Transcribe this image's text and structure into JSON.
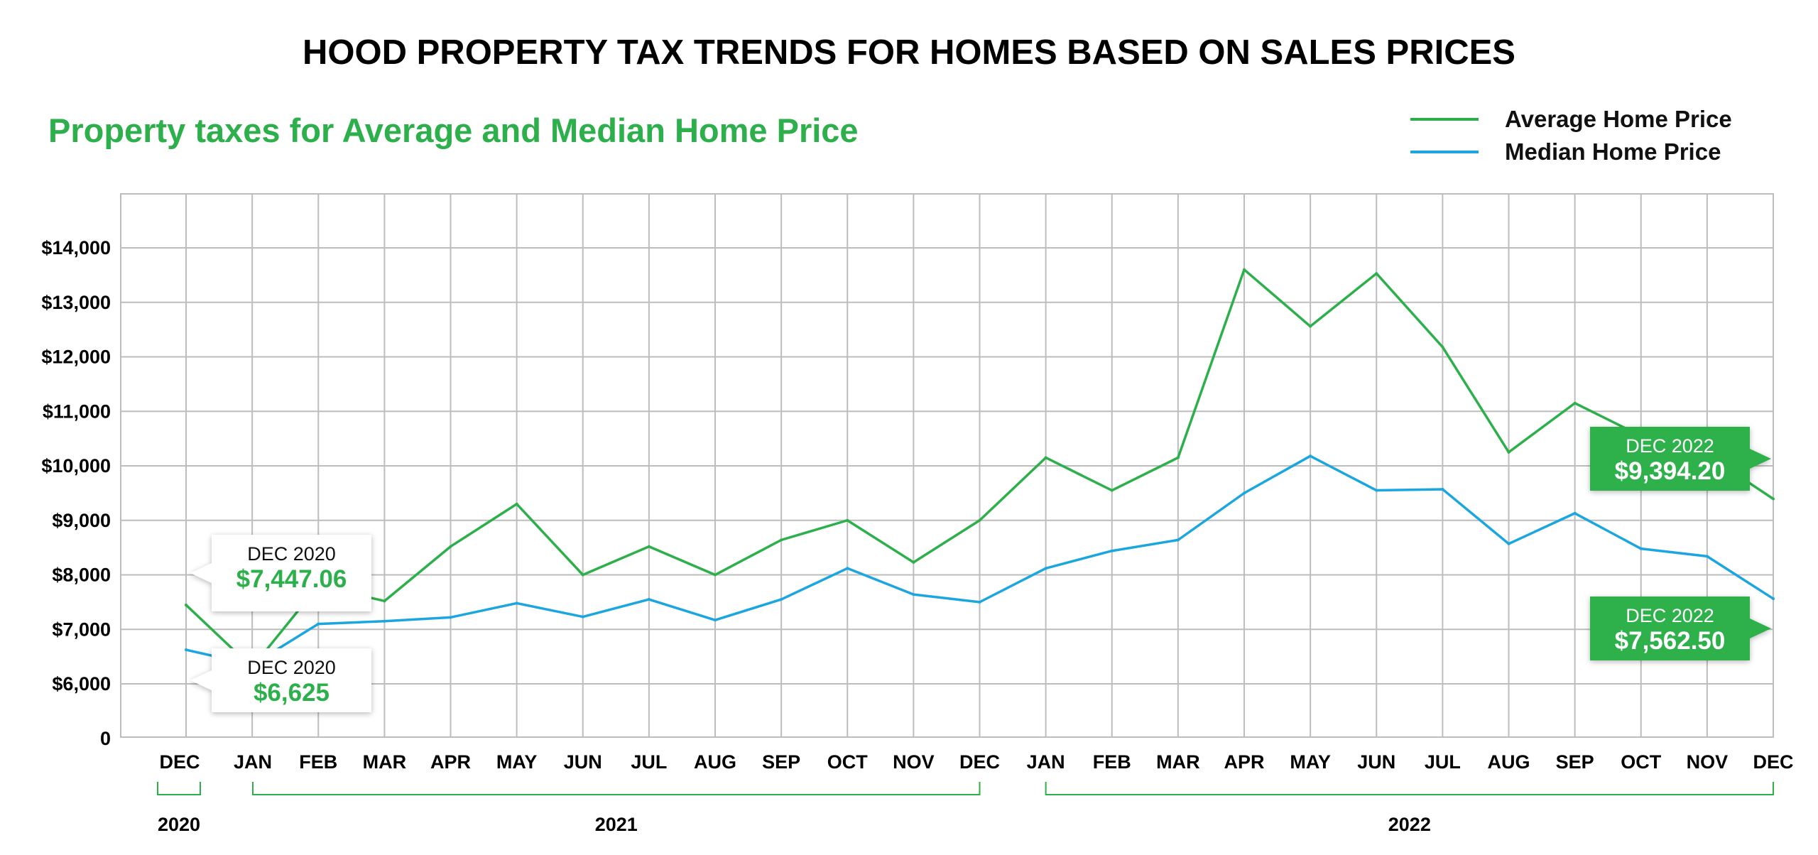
{
  "chart_data": {
    "type": "line",
    "title": "HOOD PROPERTY TAX TRENDS FOR HOMES BASED ON SALES PRICES",
    "subtitle": "Property taxes for Average and Median Home Price",
    "x": [
      "DEC",
      "JAN",
      "FEB",
      "MAR",
      "APR",
      "MAY",
      "JUN",
      "JUL",
      "AUG",
      "SEP",
      "OCT",
      "NOV",
      "DEC",
      "JAN",
      "FEB",
      "MAR",
      "APR",
      "MAY",
      "JUN",
      "JUL",
      "AUG",
      "SEP",
      "OCT",
      "NOV",
      "DEC"
    ],
    "year_groups": [
      {
        "label": "2020",
        "start": 0,
        "end": 0
      },
      {
        "label": "2021",
        "start": 1,
        "end": 12
      },
      {
        "label": "2022",
        "start": 13,
        "end": 24
      }
    ],
    "yticks": [
      {
        "value": 0,
        "label": "0"
      },
      {
        "value": 6000,
        "label": "$6,000"
      },
      {
        "value": 7000,
        "label": "$7,000"
      },
      {
        "value": 8000,
        "label": "$8,000"
      },
      {
        "value": 9000,
        "label": "$9,000"
      },
      {
        "value": 10000,
        "label": "$10,000"
      },
      {
        "value": 11000,
        "label": "$11,000"
      },
      {
        "value": 12000,
        "label": "$12,000"
      },
      {
        "value": 13000,
        "label": "$13,000"
      },
      {
        "value": 14000,
        "label": "$14,000"
      }
    ],
    "grid": true,
    "legend_position": "top-right",
    "series": [
      {
        "name": "Average Home Price",
        "color": "#2db04b",
        "values": [
          7447.06,
          6300,
          7800,
          7520,
          8520,
          9300,
          8000,
          8520,
          8000,
          8640,
          9000,
          8230,
          9000,
          10150,
          9550,
          10150,
          13600,
          12560,
          13530,
          12180,
          10250,
          11150,
          10550,
          10200,
          9394.2
        ]
      },
      {
        "name": "Median Home Price",
        "color": "#1ba6e0",
        "values": [
          6625,
          6350,
          7100,
          7150,
          7220,
          7480,
          7230,
          7550,
          7170,
          7550,
          8120,
          7640,
          7500,
          8120,
          8440,
          8640,
          9500,
          10180,
          9550,
          9570,
          8570,
          9130,
          8480,
          8340,
          7562.5
        ]
      }
    ],
    "callouts": [
      {
        "date": "DEC 2020",
        "value": "$7,447.06",
        "series": 0,
        "index": 0,
        "style": "light"
      },
      {
        "date": "DEC 2020",
        "value": "$6,625",
        "series": 1,
        "index": 0,
        "style": "light"
      },
      {
        "date": "DEC 2022",
        "value": "$9,394.20",
        "series": 0,
        "index": 24,
        "style": "filled"
      },
      {
        "date": "DEC 2022",
        "value": "$7,562.50",
        "series": 1,
        "index": 24,
        "style": "filled"
      }
    ]
  }
}
